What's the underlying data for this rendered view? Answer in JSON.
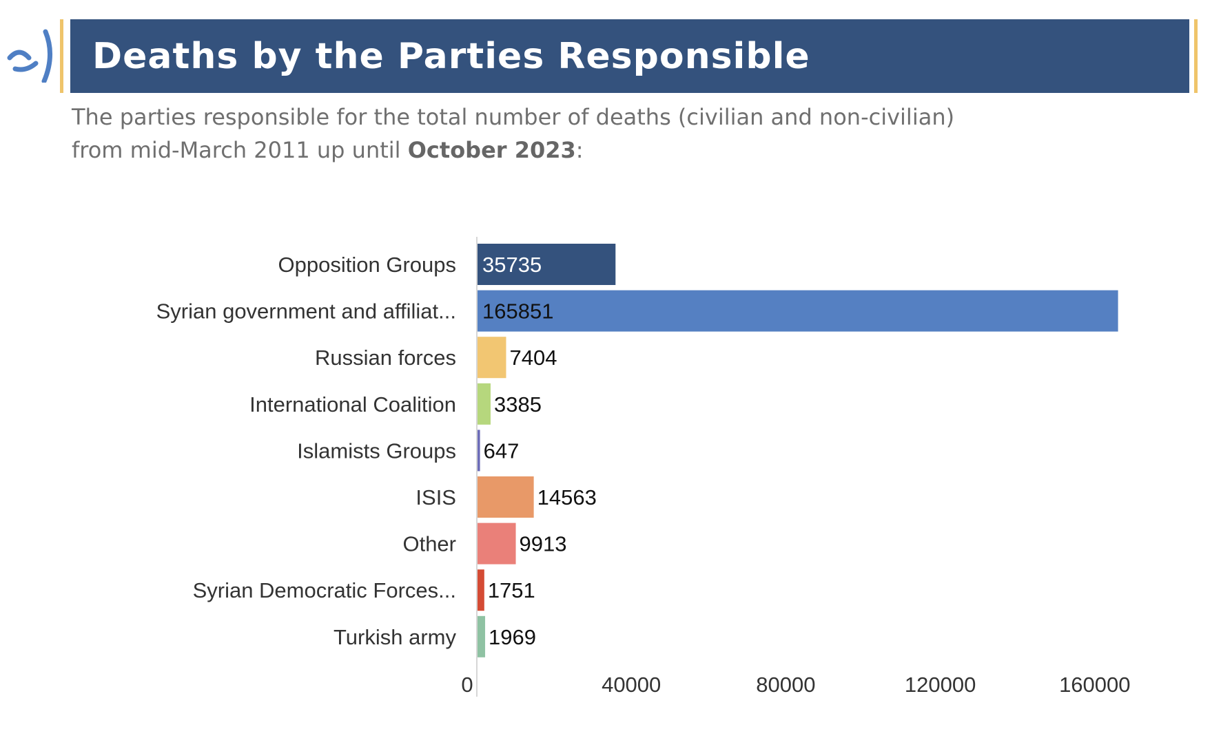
{
  "header": {
    "title": "Deaths by the Parties Responsible"
  },
  "subtitle": {
    "line1": "The parties responsible for the total number of deaths (civilian and non-civilian)",
    "line2_prefix": "from mid-March 2011 up until ",
    "line2_bold": "October 2023",
    "line2_suffix": ":"
  },
  "logo_icon": "brand-arc-logo",
  "colors": {
    "header_bg": "#34527d",
    "accent": "#efc46a",
    "logo": "#4f7fc4"
  },
  "chart_data": {
    "type": "bar",
    "orientation": "horizontal",
    "title": "",
    "xlabel": "",
    "ylabel": "",
    "categories": [
      "Opposition Groups",
      "Syrian government and affiliat...",
      "Russian forces",
      "International Coalition",
      "Islamists Groups",
      "ISIS",
      "Other",
      "Syrian Democratic Forces...",
      "Turkish army"
    ],
    "values": [
      35735,
      165851,
      7404,
      3385,
      647,
      14563,
      9913,
      1751,
      1969
    ],
    "colors": [
      "#34527d",
      "#5580c2",
      "#f2c672",
      "#b6d77d",
      "#6c6cb8",
      "#e89968",
      "#ea8079",
      "#d44b34",
      "#8fc2a3"
    ],
    "x_ticks": [
      "0",
      "40000",
      "80000",
      "120000",
      "160000"
    ],
    "xlim": [
      0,
      170000
    ],
    "grid": false,
    "legend": "none",
    "data_labels": true
  }
}
